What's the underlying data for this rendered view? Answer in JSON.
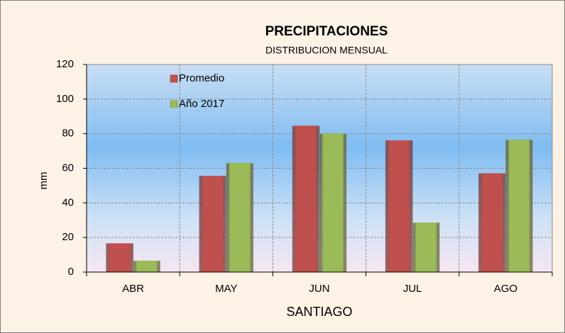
{
  "chart_data": {
    "type": "bar",
    "title": "PRECIPITACIONES",
    "subtitle": "DISTRIBUCION MENSUAL",
    "x_label": "SANTIAGO",
    "y_label": "mm",
    "categories": [
      "ABR",
      "MAY",
      "JUN",
      "JUL",
      "AGO"
    ],
    "series": [
      {
        "name": "Promedio",
        "color": "#c0504d",
        "values": [
          16.5,
          55.5,
          84.5,
          76,
          57
        ]
      },
      {
        "name": "Año 2017",
        "color": "#9bbb59",
        "values": [
          6.5,
          63,
          80,
          28.5,
          76.5
        ]
      }
    ],
    "ylim": [
      0,
      120
    ],
    "yticks": [
      0,
      20,
      40,
      60,
      80,
      100,
      120
    ],
    "grid": true,
    "legend": "upper-left"
  }
}
